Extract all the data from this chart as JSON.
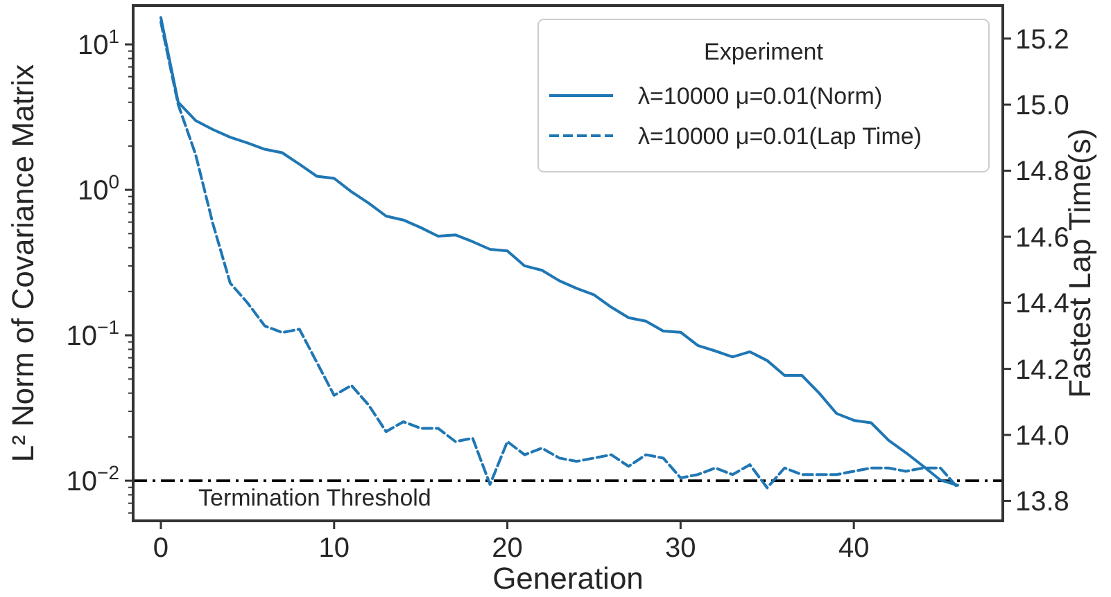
{
  "chart_data": {
    "type": "line",
    "xlabel": "Generation",
    "ylabel": "L² Norm of Covariance Matrix",
    "y2label": "Fastest Lap Time(s)",
    "legend_title": "Experiment",
    "legend": "top right",
    "grid": false,
    "log": "y",
    "marker": "none",
    "xlim": [
      -1.6,
      48.6
    ],
    "xticks": [
      0,
      10,
      20,
      30,
      40
    ],
    "ylim": [
      0.0053,
      18.5
    ],
    "yticks": [
      {
        "value": 0.006,
        "label": null
      },
      {
        "value": 0.007,
        "label": null
      },
      {
        "value": 0.008,
        "label": null
      },
      {
        "value": 0.009,
        "label": null
      },
      {
        "value": 0.01,
        "label": "10$^{−2}$"
      },
      {
        "value": 0.02,
        "label": null
      },
      {
        "value": 0.03,
        "label": null
      },
      {
        "value": 0.04,
        "label": null
      },
      {
        "value": 0.05,
        "label": null
      },
      {
        "value": 0.06,
        "label": null
      },
      {
        "value": 0.07,
        "label": null
      },
      {
        "value": 0.08,
        "label": null
      },
      {
        "value": 0.09,
        "label": null
      },
      {
        "value": 0.1,
        "label": "10$^{−1}$"
      },
      {
        "value": 0.2,
        "label": null
      },
      {
        "value": 0.3,
        "label": null
      },
      {
        "value": 0.4,
        "label": null
      },
      {
        "value": 0.5,
        "label": null
      },
      {
        "value": 0.6,
        "label": null
      },
      {
        "value": 0.7,
        "label": null
      },
      {
        "value": 0.8,
        "label": null
      },
      {
        "value": 0.9,
        "label": null
      },
      {
        "value": 1,
        "label": "10$^{0}$"
      },
      {
        "value": 2,
        "label": null
      },
      {
        "value": 3,
        "label": null
      },
      {
        "value": 4,
        "label": null
      },
      {
        "value": 5,
        "label": null
      },
      {
        "value": 6,
        "label": null
      },
      {
        "value": 7,
        "label": null
      },
      {
        "value": 8,
        "label": null
      },
      {
        "value": 9,
        "label": null
      },
      {
        "value": 10,
        "label": "10$^{1}$"
      }
    ],
    "y2lim": [
      13.74,
      15.3
    ],
    "y2ticks": [
      {
        "value": 13.8,
        "label": "13.8"
      },
      {
        "value": 14.0,
        "label": "14.0"
      },
      {
        "value": 14.2,
        "label": "14.2"
      },
      {
        "value": 14.4,
        "label": "14.4"
      },
      {
        "value": 14.6,
        "label": "14.6"
      },
      {
        "value": 14.8,
        "label": "14.8"
      },
      {
        "value": 15.0,
        "label": "15.0"
      },
      {
        "value": 15.2,
        "label": "15.2"
      }
    ],
    "x": [
      0,
      1,
      2,
      3,
      4,
      5,
      6,
      7,
      8,
      9,
      10,
      11,
      12,
      13,
      14,
      15,
      16,
      17,
      18,
      19,
      20,
      21,
      22,
      23,
      24,
      25,
      26,
      27,
      28,
      29,
      30,
      31,
      32,
      33,
      34,
      35,
      36,
      37,
      38,
      39,
      40,
      41,
      42,
      43,
      44,
      45,
      46
    ],
    "series": [
      {
        "name": "λ=10000 μ=0.01(Norm)",
        "color": "#1f77b4",
        "line_style": "solid",
        "values": [
          15.3,
          4.0,
          3.0,
          2.6,
          2.3,
          2.1,
          1.9,
          1.8,
          1.5,
          1.24,
          1.2,
          0.97,
          0.81,
          0.66,
          0.62,
          0.55,
          0.48,
          0.49,
          0.44,
          0.39,
          0.38,
          0.3,
          0.28,
          0.237,
          0.21,
          0.19,
          0.156,
          0.132,
          0.125,
          0.107,
          0.105,
          0.085,
          0.078,
          0.071,
          0.077,
          0.067,
          0.053,
          0.053,
          0.04,
          0.029,
          0.026,
          0.025,
          0.019,
          0.0156,
          0.0126,
          0.0101,
          0.0093
        ]
      },
      {
        "name": "λ=10000 μ=0.01(Lap Time)",
        "color": "#1f77b4",
        "line_style": "dashed",
        "axis": "y2",
        "values": [
          15.25,
          15.0,
          14.85,
          14.64,
          14.46,
          14.4,
          14.33,
          14.31,
          14.32,
          14.22,
          14.12,
          14.15,
          14.09,
          14.01,
          14.04,
          14.02,
          14.02,
          13.98,
          13.99,
          13.85,
          13.98,
          13.94,
          13.96,
          13.93,
          13.92,
          13.93,
          13.94,
          13.905,
          13.94,
          13.93,
          13.87,
          13.88,
          13.9,
          13.88,
          13.91,
          13.84,
          13.9,
          13.88,
          13.88,
          13.88,
          13.89,
          13.9,
          13.9,
          13.89,
          13.9,
          13.9,
          13.84
        ]
      }
    ],
    "ref_lines": [
      {
        "axis": "y",
        "value": 0.01,
        "label": "Termination Threshold",
        "color": "#000000",
        "line_style": "dashdot"
      }
    ]
  }
}
